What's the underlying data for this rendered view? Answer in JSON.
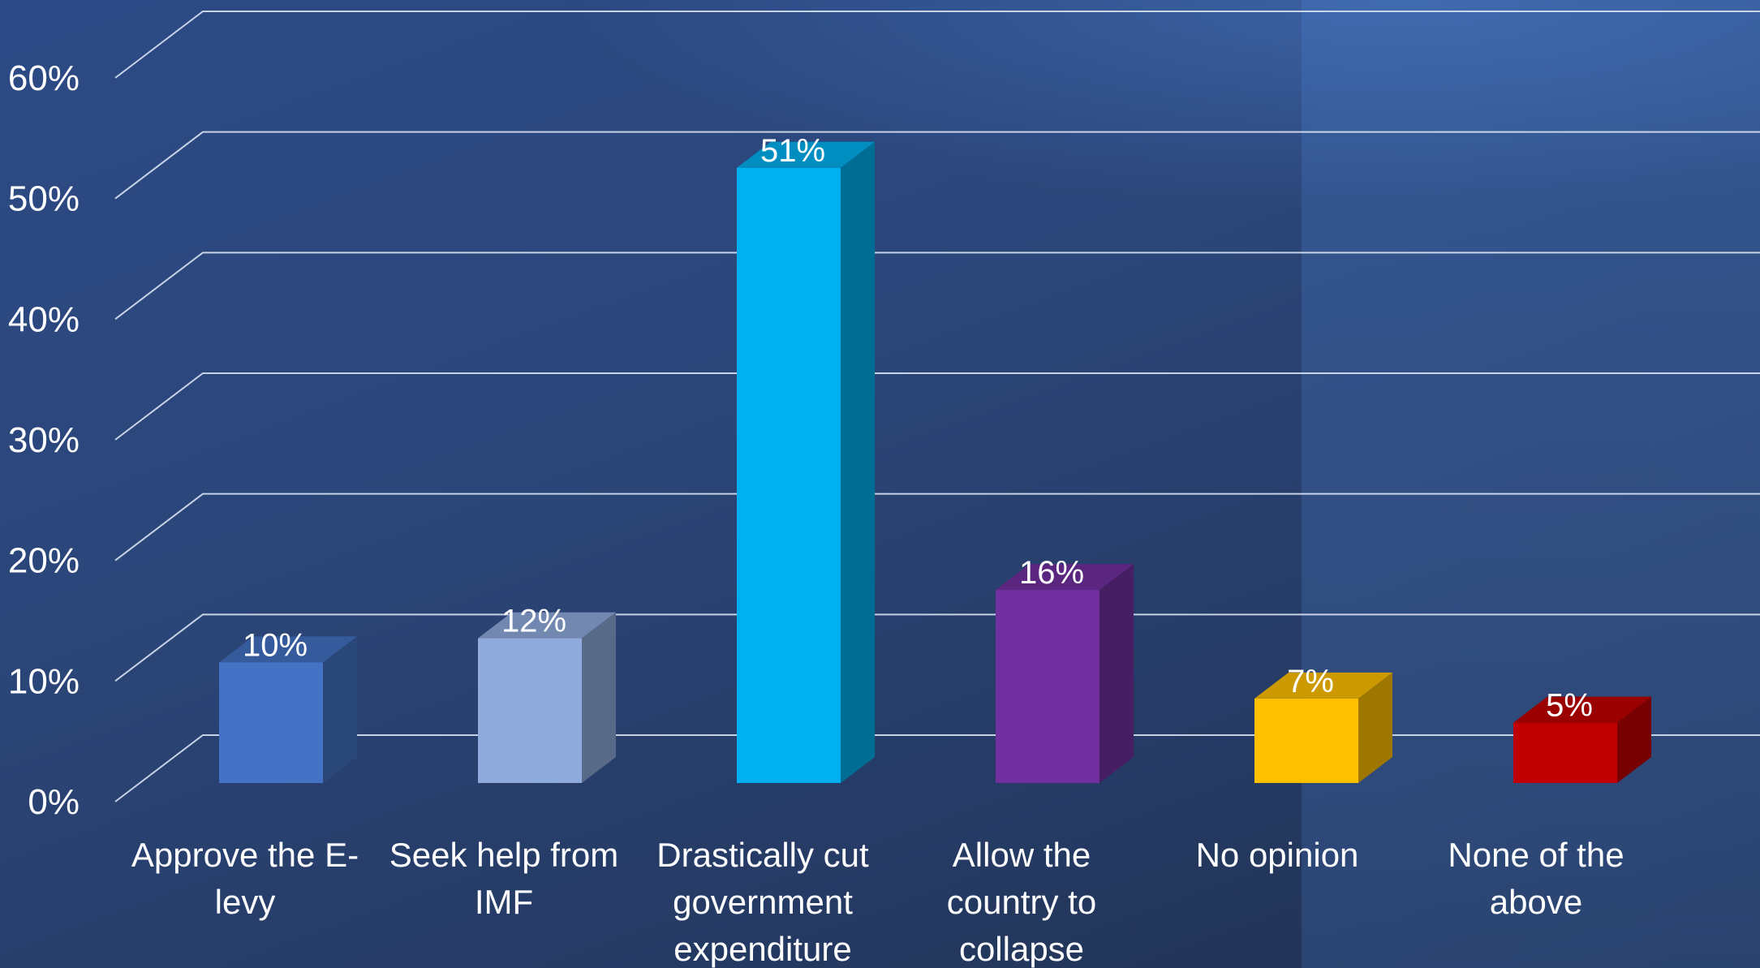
{
  "chart_data": {
    "type": "bar",
    "categories": [
      "Approve the E-levy",
      "Seek help from IMF",
      "Drastically cut government expenditure",
      "Allow the country to collapse",
      "No opinion",
      "None of the above"
    ],
    "category_label_lines": [
      [
        "Approve the E-",
        "levy"
      ],
      [
        "Seek help from",
        "IMF"
      ],
      [
        "Drastically cut",
        "government",
        "expenditure"
      ],
      [
        "Allow the",
        "country to",
        "collapse"
      ],
      [
        "No opinion"
      ],
      [
        "None of the",
        "above"
      ]
    ],
    "values": [
      10,
      12,
      51,
      16,
      7,
      5
    ],
    "data_labels": [
      "10%",
      "12%",
      "51%",
      "16%",
      "7%",
      "5%"
    ],
    "colors": [
      "#4472C4",
      "#8FAADC",
      "#00B0F0",
      "#7030A0",
      "#FFC000",
      "#C00000"
    ],
    "y_ticks": [
      "0%",
      "10%",
      "20%",
      "30%",
      "40%",
      "50%",
      "60%"
    ],
    "ylim": [
      0,
      60
    ],
    "grid": true,
    "style": "3d-clustered-column",
    "title": "",
    "xlabel": "",
    "ylabel": ""
  }
}
